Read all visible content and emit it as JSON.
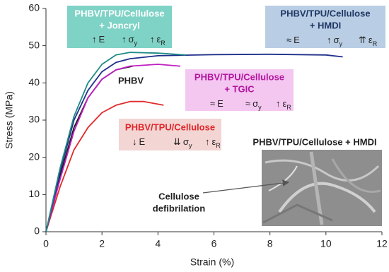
{
  "chart_data": {
    "type": "line",
    "x_label": "Strain (%)",
    "y_label": "Stress (MPa)",
    "xlim": [
      0,
      12
    ],
    "xticks": [
      0,
      2,
      4,
      6,
      8,
      10,
      12
    ],
    "ylim": [
      0,
      60
    ],
    "yticks": [
      0,
      10,
      20,
      30,
      40,
      50,
      60
    ],
    "series": [
      {
        "color": "#e02a2a",
        "x": [
          0,
          0.5,
          1,
          1.5,
          2,
          2.5,
          3,
          3.5,
          4.2
        ],
        "values": [
          0,
          12,
          22,
          28,
          32,
          34,
          35,
          35,
          34
        ]
      },
      {
        "color": "#1a1a1a",
        "x": [
          0,
          0.5,
          1,
          1.5,
          2,
          2.5,
          3.1
        ],
        "values": [
          0,
          15,
          28,
          36,
          41,
          43.5,
          44.5
        ]
      },
      {
        "color": "#c020c0",
        "x": [
          0,
          0.5,
          1,
          1.5,
          2,
          2.5,
          3,
          4,
          4.8
        ],
        "values": [
          0,
          14,
          27,
          36,
          41,
          43.5,
          44.5,
          45,
          44.5
        ]
      },
      {
        "color": "#1f2f8a",
        "x": [
          0,
          0.5,
          1,
          1.5,
          2,
          2.5,
          3,
          4,
          6,
          8,
          10,
          10.6
        ],
        "values": [
          0,
          16,
          30,
          38,
          43,
          45.5,
          46.5,
          47.3,
          47.6,
          47.7,
          47.5,
          47
        ]
      },
      {
        "color": "#1e8a84",
        "x": [
          0,
          0.5,
          1,
          1.5,
          2,
          2.5,
          3,
          4,
          5
        ],
        "values": [
          0,
          17,
          31,
          40,
          45,
          47.5,
          48.2,
          48,
          47.5
        ]
      }
    ],
    "annotations": [
      {
        "lines": [
          "PHBV/TPU/Cellulose",
          "+ Joncryl"
        ],
        "effects": [
          {
            "arrow": "↑",
            "symbol": "E"
          },
          {
            "arrow": "↑",
            "symbol": "σ",
            "sub": "y"
          },
          {
            "arrow": "↑",
            "symbol": "ε",
            "sub": "R"
          }
        ]
      },
      {
        "lines": [
          "PHBV/TPU/Cellulose",
          "+ HMDI"
        ],
        "effects": [
          {
            "arrow": "≈",
            "symbol": "E"
          },
          {
            "arrow": "↑",
            "symbol": "σ",
            "sub": "y"
          },
          {
            "arrow": "⇈",
            "symbol": "ε",
            "sub": "R"
          }
        ]
      },
      {
        "lines": [
          "PHBV/TPU/Cellulose",
          "+ TGIC"
        ],
        "effects": [
          {
            "arrow": "≈",
            "symbol": "E"
          },
          {
            "arrow": "≈",
            "symbol": "σ",
            "sub": "y"
          },
          {
            "arrow": "↑",
            "symbol": "ε",
            "sub": "R"
          }
        ]
      },
      {
        "lines": [
          "PHBV/TPU/Cellulose"
        ],
        "effects": [
          {
            "arrow": "↓",
            "symbol": "E"
          },
          {
            "arrow": "⇊",
            "symbol": "σ",
            "sub": "y"
          },
          {
            "arrow": "↑",
            "symbol": "ε",
            "sub": "R"
          }
        ]
      }
    ],
    "labels": {
      "phbv": "PHBV",
      "image_title": "PHBV/TPU/Cellulose + HMDI",
      "image_note": [
        "Cellulose",
        "defibrilation"
      ]
    }
  }
}
